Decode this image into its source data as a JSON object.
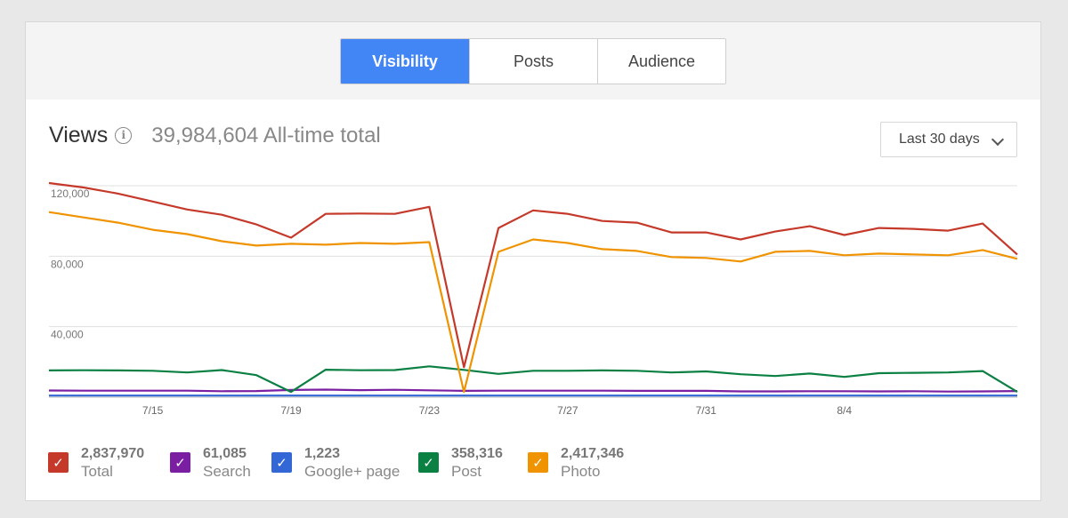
{
  "tabs": [
    {
      "label": "Visibility",
      "active": true
    },
    {
      "label": "Posts",
      "active": false
    },
    {
      "label": "Audience",
      "active": false
    }
  ],
  "header": {
    "title": "Views",
    "info_icon": "info-icon",
    "total": "39,984,604 All-time total"
  },
  "range": {
    "label": "Last 30 days",
    "icon": "chevron-down-icon"
  },
  "legend": [
    {
      "value": "2,837,970",
      "name": "Total",
      "color": "#c5392a"
    },
    {
      "value": "61,085",
      "name": "Search",
      "color": "#7b1fa2"
    },
    {
      "value": "1,223",
      "name": "Google+ page",
      "color": "#3367d6"
    },
    {
      "value": "358,316",
      "name": "Post",
      "color": "#0b8043"
    },
    {
      "value": "2,417,346",
      "name": "Photo",
      "color": "#f09300"
    }
  ],
  "chart_data": {
    "type": "line",
    "grid": true,
    "ylim": [
      0,
      130000
    ],
    "yticks": [
      {
        "value": 40000,
        "label": "40,000"
      },
      {
        "value": 80000,
        "label": "80,000"
      },
      {
        "value": 120000,
        "label": "120,000"
      }
    ],
    "x_labels": [
      "7/15",
      "7/19",
      "7/23",
      "7/27",
      "7/31",
      "8/4"
    ],
    "x_label_positions": [
      3,
      7,
      11,
      15,
      19,
      23
    ],
    "series": [
      {
        "name": "Total",
        "color": "#c5392a",
        "values": [
          121500,
          119000,
          115500,
          111000,
          106500,
          103500,
          98000,
          90500,
          104000,
          104200,
          104000,
          108000,
          17000,
          96000,
          106000,
          104000,
          100000,
          99000,
          93500,
          93500,
          89500,
          94000,
          97000,
          92000,
          96000,
          95500,
          94500,
          98500,
          81000
        ]
      },
      {
        "name": "Photo",
        "color": "#f09300",
        "values": [
          105000,
          102000,
          99000,
          95000,
          92500,
          88500,
          86000,
          87000,
          86500,
          87500,
          87000,
          88000,
          3000,
          82500,
          89500,
          87500,
          84000,
          83000,
          79500,
          79000,
          77000,
          82500,
          83000,
          80500,
          81500,
          81000,
          80500,
          83500,
          78500
        ]
      },
      {
        "name": "Post",
        "color": "#0b8043",
        "values": [
          15200,
          15300,
          15200,
          15000,
          14000,
          15400,
          12500,
          3000,
          15600,
          15300,
          15400,
          17500,
          15500,
          13200,
          15000,
          15000,
          15200,
          15000,
          14000,
          14600,
          13000,
          12000,
          13400,
          11500,
          13600,
          13800,
          14000,
          14800,
          3000
        ]
      },
      {
        "name": "Search",
        "color": "#7b1fa2",
        "values": [
          3800,
          3700,
          3700,
          3700,
          3700,
          3400,
          3500,
          4100,
          4300,
          4000,
          4200,
          3900,
          3600,
          3700,
          3700,
          3700,
          3700,
          3600,
          3600,
          3600,
          3300,
          3300,
          3400,
          3400,
          3300,
          3400,
          3200,
          3300,
          3500
        ]
      },
      {
        "name": "Google+ page",
        "color": "#3367d6",
        "values": [
          900,
          900,
          900,
          900,
          900,
          900,
          900,
          900,
          900,
          900,
          900,
          900,
          900,
          900,
          900,
          900,
          900,
          900,
          900,
          900,
          900,
          900,
          900,
          900,
          900,
          900,
          900,
          900,
          900
        ]
      }
    ]
  }
}
